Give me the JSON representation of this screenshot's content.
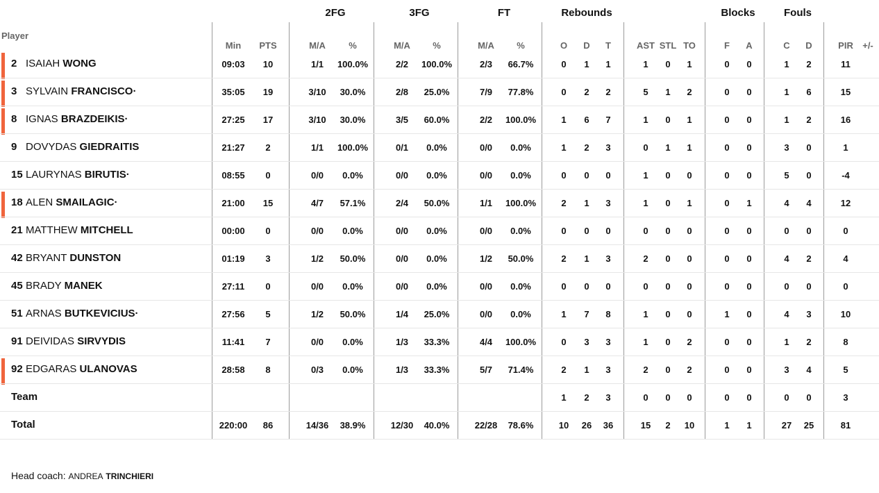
{
  "headers": {
    "player": "Player",
    "groups": {
      "fg2": "2FG",
      "fg3": "3FG",
      "ft": "FT",
      "rebounds": "Rebounds",
      "blocks": "Blocks",
      "fouls": "Fouls"
    },
    "sub": {
      "min": "Min",
      "pts": "PTS",
      "fg2_ma": "M/A",
      "fg2_pct": "%",
      "fg3_ma": "M/A",
      "fg3_pct": "%",
      "ft_ma": "M/A",
      "ft_pct": "%",
      "reb_o": "O",
      "reb_d": "D",
      "reb_t": "T",
      "ast": "AST",
      "stl": "STL",
      "to": "TO",
      "blk_f": "F",
      "blk_a": "A",
      "foul_c": "C",
      "foul_d": "D",
      "pir": "PIR",
      "pm": "+/-"
    }
  },
  "accent_color": "#f0643c",
  "players": [
    {
      "num": "2",
      "first": "ISAIAH",
      "last": "WONG",
      "starter": true,
      "stats": {
        "min": "09:03",
        "pts": "10",
        "fg2_ma": "1/1",
        "fg2_pct": "100.0%",
        "fg3_ma": "2/2",
        "fg3_pct": "100.0%",
        "ft_ma": "2/3",
        "ft_pct": "66.7%",
        "reb_o": "0",
        "reb_d": "1",
        "reb_t": "1",
        "ast": "1",
        "stl": "0",
        "to": "1",
        "blk_f": "0",
        "blk_a": "0",
        "foul_c": "1",
        "foul_d": "2",
        "pir": "11"
      }
    },
    {
      "num": "3",
      "first": "SYLVAIN",
      "last": "FRANCISCO·",
      "starter": true,
      "stats": {
        "min": "35:05",
        "pts": "19",
        "fg2_ma": "3/10",
        "fg2_pct": "30.0%",
        "fg3_ma": "2/8",
        "fg3_pct": "25.0%",
        "ft_ma": "7/9",
        "ft_pct": "77.8%",
        "reb_o": "0",
        "reb_d": "2",
        "reb_t": "2",
        "ast": "5",
        "stl": "1",
        "to": "2",
        "blk_f": "0",
        "blk_a": "0",
        "foul_c": "1",
        "foul_d": "6",
        "pir": "15"
      }
    },
    {
      "num": "8",
      "first": "IGNAS",
      "last": "BRAZDEIKIS·",
      "starter": true,
      "stats": {
        "min": "27:25",
        "pts": "17",
        "fg2_ma": "3/10",
        "fg2_pct": "30.0%",
        "fg3_ma": "3/5",
        "fg3_pct": "60.0%",
        "ft_ma": "2/2",
        "ft_pct": "100.0%",
        "reb_o": "1",
        "reb_d": "6",
        "reb_t": "7",
        "ast": "1",
        "stl": "0",
        "to": "1",
        "blk_f": "0",
        "blk_a": "0",
        "foul_c": "1",
        "foul_d": "2",
        "pir": "16"
      }
    },
    {
      "num": "9",
      "first": "DOVYDAS",
      "last": "GIEDRAITIS",
      "starter": false,
      "stats": {
        "min": "21:27",
        "pts": "2",
        "fg2_ma": "1/1",
        "fg2_pct": "100.0%",
        "fg3_ma": "0/1",
        "fg3_pct": "0.0%",
        "ft_ma": "0/0",
        "ft_pct": "0.0%",
        "reb_o": "1",
        "reb_d": "2",
        "reb_t": "3",
        "ast": "0",
        "stl": "1",
        "to": "1",
        "blk_f": "0",
        "blk_a": "0",
        "foul_c": "3",
        "foul_d": "0",
        "pir": "1"
      }
    },
    {
      "num": "15",
      "first": "LAURYNAS",
      "last": "BIRUTIS·",
      "starter": false,
      "stats": {
        "min": "08:55",
        "pts": "0",
        "fg2_ma": "0/0",
        "fg2_pct": "0.0%",
        "fg3_ma": "0/0",
        "fg3_pct": "0.0%",
        "ft_ma": "0/0",
        "ft_pct": "0.0%",
        "reb_o": "0",
        "reb_d": "0",
        "reb_t": "0",
        "ast": "1",
        "stl": "0",
        "to": "0",
        "blk_f": "0",
        "blk_a": "0",
        "foul_c": "5",
        "foul_d": "0",
        "pir": "-4"
      }
    },
    {
      "num": "18",
      "first": "ALEN",
      "last": "SMAILAGIC·",
      "starter": true,
      "stats": {
        "min": "21:00",
        "pts": "15",
        "fg2_ma": "4/7",
        "fg2_pct": "57.1%",
        "fg3_ma": "2/4",
        "fg3_pct": "50.0%",
        "ft_ma": "1/1",
        "ft_pct": "100.0%",
        "reb_o": "2",
        "reb_d": "1",
        "reb_t": "3",
        "ast": "1",
        "stl": "0",
        "to": "1",
        "blk_f": "0",
        "blk_a": "1",
        "foul_c": "4",
        "foul_d": "4",
        "pir": "12"
      }
    },
    {
      "num": "21",
      "first": "MATTHEW",
      "last": "MITCHELL",
      "starter": false,
      "stats": {
        "min": "00:00",
        "pts": "0",
        "fg2_ma": "0/0",
        "fg2_pct": "0.0%",
        "fg3_ma": "0/0",
        "fg3_pct": "0.0%",
        "ft_ma": "0/0",
        "ft_pct": "0.0%",
        "reb_o": "0",
        "reb_d": "0",
        "reb_t": "0",
        "ast": "0",
        "stl": "0",
        "to": "0",
        "blk_f": "0",
        "blk_a": "0",
        "foul_c": "0",
        "foul_d": "0",
        "pir": "0"
      }
    },
    {
      "num": "42",
      "first": "BRYANT",
      "last": "DUNSTON",
      "starter": false,
      "stats": {
        "min": "01:19",
        "pts": "3",
        "fg2_ma": "1/2",
        "fg2_pct": "50.0%",
        "fg3_ma": "0/0",
        "fg3_pct": "0.0%",
        "ft_ma": "1/2",
        "ft_pct": "50.0%",
        "reb_o": "2",
        "reb_d": "1",
        "reb_t": "3",
        "ast": "2",
        "stl": "0",
        "to": "0",
        "blk_f": "0",
        "blk_a": "0",
        "foul_c": "4",
        "foul_d": "2",
        "pir": "4"
      }
    },
    {
      "num": "45",
      "first": "BRADY",
      "last": "MANEK",
      "starter": false,
      "stats": {
        "min": "27:11",
        "pts": "0",
        "fg2_ma": "0/0",
        "fg2_pct": "0.0%",
        "fg3_ma": "0/0",
        "fg3_pct": "0.0%",
        "ft_ma": "0/0",
        "ft_pct": "0.0%",
        "reb_o": "0",
        "reb_d": "0",
        "reb_t": "0",
        "ast": "0",
        "stl": "0",
        "to": "0",
        "blk_f": "0",
        "blk_a": "0",
        "foul_c": "0",
        "foul_d": "0",
        "pir": "0"
      }
    },
    {
      "num": "51",
      "first": "ARNAS",
      "last": "BUTKEVICIUS·",
      "starter": false,
      "stats": {
        "min": "27:56",
        "pts": "5",
        "fg2_ma": "1/2",
        "fg2_pct": "50.0%",
        "fg3_ma": "1/4",
        "fg3_pct": "25.0%",
        "ft_ma": "0/0",
        "ft_pct": "0.0%",
        "reb_o": "1",
        "reb_d": "7",
        "reb_t": "8",
        "ast": "1",
        "stl": "0",
        "to": "0",
        "blk_f": "1",
        "blk_a": "0",
        "foul_c": "4",
        "foul_d": "3",
        "pir": "10"
      }
    },
    {
      "num": "91",
      "first": "DEIVIDAS",
      "last": "SIRVYDIS",
      "starter": false,
      "stats": {
        "min": "11:41",
        "pts": "7",
        "fg2_ma": "0/0",
        "fg2_pct": "0.0%",
        "fg3_ma": "1/3",
        "fg3_pct": "33.3%",
        "ft_ma": "4/4",
        "ft_pct": "100.0%",
        "reb_o": "0",
        "reb_d": "3",
        "reb_t": "3",
        "ast": "1",
        "stl": "0",
        "to": "2",
        "blk_f": "0",
        "blk_a": "0",
        "foul_c": "1",
        "foul_d": "2",
        "pir": "8"
      }
    },
    {
      "num": "92",
      "first": "EDGARAS",
      "last": "ULANOVAS",
      "starter": true,
      "stats": {
        "min": "28:58",
        "pts": "8",
        "fg2_ma": "0/3",
        "fg2_pct": "0.0%",
        "fg3_ma": "1/3",
        "fg3_pct": "33.3%",
        "ft_ma": "5/7",
        "ft_pct": "71.4%",
        "reb_o": "2",
        "reb_d": "1",
        "reb_t": "3",
        "ast": "2",
        "stl": "0",
        "to": "2",
        "blk_f": "0",
        "blk_a": "0",
        "foul_c": "3",
        "foul_d": "4",
        "pir": "5"
      }
    }
  ],
  "team_row": {
    "label": "Team",
    "stats": {
      "reb_o": "1",
      "reb_d": "2",
      "reb_t": "3",
      "ast": "0",
      "stl": "0",
      "to": "0",
      "blk_f": "0",
      "blk_a": "0",
      "foul_c": "0",
      "foul_d": "0",
      "pir": "3"
    }
  },
  "total_row": {
    "label": "Total",
    "stats": {
      "min": "220:00",
      "pts": "86",
      "fg2_ma": "14/36",
      "fg2_pct": "38.9%",
      "fg3_ma": "12/30",
      "fg3_pct": "40.0%",
      "ft_ma": "22/28",
      "ft_pct": "78.6%",
      "reb_o": "10",
      "reb_d": "26",
      "reb_t": "36",
      "ast": "15",
      "stl": "2",
      "to": "10",
      "blk_f": "1",
      "blk_a": "1",
      "foul_c": "27",
      "foul_d": "25",
      "pir": "81"
    }
  },
  "coach": {
    "label": "Head coach:",
    "first": "ANDREA",
    "last": "TRINCHIERI"
  }
}
